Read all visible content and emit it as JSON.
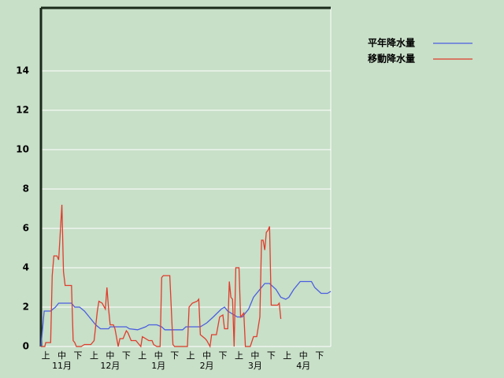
{
  "chart_data": {
    "type": "line",
    "xlim": [
      0,
      180
    ],
    "ylim": [
      0,
      17.2
    ],
    "yticks": [
      0,
      2,
      4,
      6,
      8,
      10,
      12,
      14
    ],
    "grid": true,
    "dekads": [
      "上",
      "中",
      "下",
      "上",
      "中",
      "下",
      "上",
      "中",
      "下",
      "上",
      "中",
      "下",
      "上",
      "中",
      "下",
      "上",
      "中",
      "下"
    ],
    "months": [
      "11月",
      "12月",
      "1月",
      "2月",
      "3月",
      "4月"
    ],
    "series": [
      {
        "name": "平年降水量",
        "color": "#4a5ee0",
        "x": [
          0,
          2,
          6,
          9,
          11,
          19,
          21,
          24,
          27,
          31,
          34,
          37,
          42,
          43,
          53,
          55,
          60,
          65,
          67,
          72,
          75,
          77,
          88,
          90,
          99,
          103,
          107,
          112,
          114,
          116,
          120,
          122,
          125,
          129,
          132,
          136,
          139,
          142,
          146,
          149,
          152,
          154,
          157,
          161,
          168,
          170,
          174,
          178,
          180
        ],
        "values": [
          0,
          1.8,
          1.8,
          2.0,
          2.2,
          2.2,
          2.0,
          2.0,
          1.8,
          1.4,
          1.1,
          0.9,
          0.9,
          1.0,
          1.0,
          0.9,
          0.85,
          1.0,
          1.1,
          1.1,
          1.0,
          0.85,
          0.85,
          1.0,
          1.0,
          1.2,
          1.5,
          1.9,
          2.0,
          1.8,
          1.6,
          1.5,
          1.5,
          1.9,
          2.5,
          2.9,
          3.2,
          3.2,
          2.9,
          2.5,
          2.4,
          2.5,
          2.9,
          3.3,
          3.3,
          3.0,
          2.7,
          2.7,
          2.8
        ]
      },
      {
        "name": "移動降水量",
        "color": "#e03c2c",
        "x": [
          0,
          2.4,
          3,
          6,
          7,
          8,
          10,
          11,
          13,
          14,
          15,
          19,
          20,
          21,
          22,
          25,
          27,
          31,
          33,
          35,
          36,
          38,
          40,
          41,
          42,
          43,
          45,
          46,
          48,
          49,
          51,
          53,
          54,
          56,
          59,
          61,
          62,
          63,
          65,
          67,
          69,
          70,
          72,
          74,
          75,
          76,
          80,
          82,
          83,
          91,
          92,
          94,
          97,
          98,
          99,
          102,
          103,
          105,
          106,
          109,
          111,
          113,
          114,
          116,
          117,
          118,
          119,
          120,
          121,
          123,
          124,
          126,
          127,
          130,
          132,
          134,
          136,
          137,
          138,
          139,
          140,
          141,
          142,
          143,
          147,
          148,
          149
        ],
        "values": [
          0,
          0,
          0.2,
          0.2,
          3.6,
          4.6,
          4.6,
          4.4,
          7.2,
          3.8,
          3.1,
          3.1,
          0.3,
          0.2,
          0,
          0,
          0.1,
          0.1,
          0.3,
          1.8,
          2.3,
          2.2,
          1.9,
          3.0,
          1.9,
          1.1,
          1.1,
          0.9,
          0,
          0.4,
          0.4,
          0.8,
          0.7,
          0.3,
          0.3,
          0.1,
          0,
          0.5,
          0.4,
          0.3,
          0.3,
          0.1,
          0,
          0,
          3.5,
          3.6,
          3.6,
          0.1,
          0,
          0,
          2.0,
          2.2,
          2.3,
          2.4,
          0.6,
          0.4,
          0.3,
          0,
          0.6,
          0.6,
          1.5,
          1.6,
          0.9,
          0.9,
          3.3,
          2.5,
          2.4,
          0,
          4.0,
          4.0,
          1.5,
          1.7,
          0,
          0,
          0.5,
          0.5,
          1.5,
          5.4,
          5.4,
          4.9,
          5.8,
          5.9,
          6.1,
          2.1,
          2.1,
          2.2,
          1.4
        ]
      }
    ]
  }
}
